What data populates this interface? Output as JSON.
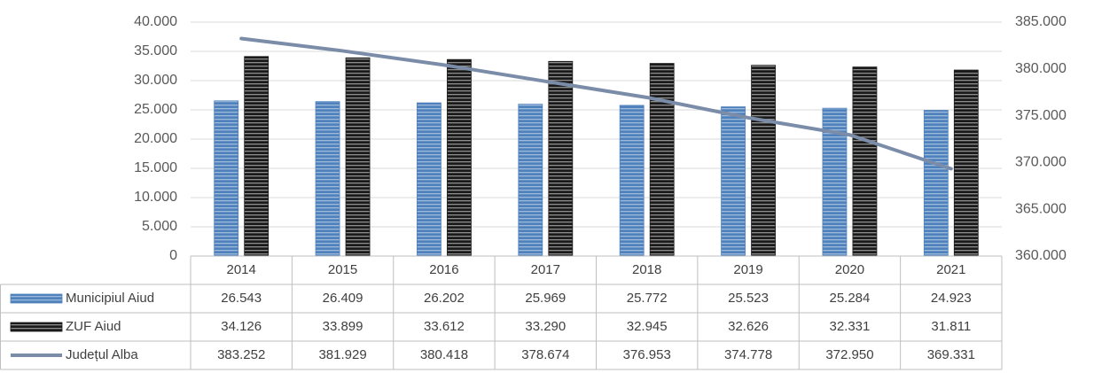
{
  "chart_data": {
    "type": "bar",
    "categories": [
      "2014",
      "2015",
      "2016",
      "2017",
      "2018",
      "2019",
      "2020",
      "2021"
    ],
    "series": [
      {
        "name": "Municipiul Aiud",
        "color": "#4f81bd",
        "type": "bar",
        "values": [
          26543,
          26409,
          26202,
          25969,
          25772,
          25523,
          25284,
          24923
        ],
        "value_labels": [
          "26.543",
          "26.409",
          "26.202",
          "25.969",
          "25.772",
          "25.523",
          "25.284",
          "24.923"
        ]
      },
      {
        "name": "ZUF Aiud",
        "color": "#1a1a1a",
        "type": "bar",
        "values": [
          34126,
          33899,
          33612,
          33290,
          32945,
          32626,
          32331,
          31811
        ],
        "value_labels": [
          "34.126",
          "33.899",
          "33.612",
          "33.290",
          "32.945",
          "32.626",
          "32.331",
          "31.811"
        ]
      },
      {
        "name": "Județul Alba",
        "color": "#7a8ca8",
        "type": "line",
        "axis": "y2",
        "values": [
          383252,
          381929,
          380418,
          378674,
          376953,
          374778,
          372950,
          369331
        ],
        "value_labels": [
          "383.252",
          "381.929",
          "380.418",
          "378.674",
          "376.953",
          "374.778",
          "372.950",
          "369.331"
        ]
      }
    ],
    "ylim": [
      0,
      40000
    ],
    "yticks": [
      0,
      {
        "value": 5000,
        "label": "5.000"
      },
      {
        "value": 10000,
        "label": "10.000"
      },
      {
        "value": 15000,
        "label": "15.000"
      },
      {
        "value": 20000,
        "label": "20.000"
      },
      {
        "value": 25000,
        "label": "25.000"
      },
      {
        "value": 30000,
        "label": "30.000"
      },
      {
        "value": 35000,
        "label": "35.000"
      },
      {
        "value": 40000,
        "label": "40.000"
      }
    ],
    "y2lim": [
      360000,
      385000
    ],
    "y2ticks": [
      {
        "value": 360000,
        "label": "360.000"
      },
      {
        "value": 365000,
        "label": "365.000"
      },
      {
        "value": 370000,
        "label": "370.000"
      },
      {
        "value": 375000,
        "label": "375.000"
      },
      {
        "value": 380000,
        "label": "380.000"
      },
      {
        "value": 385000,
        "label": "385.000"
      }
    ],
    "grid": true
  }
}
